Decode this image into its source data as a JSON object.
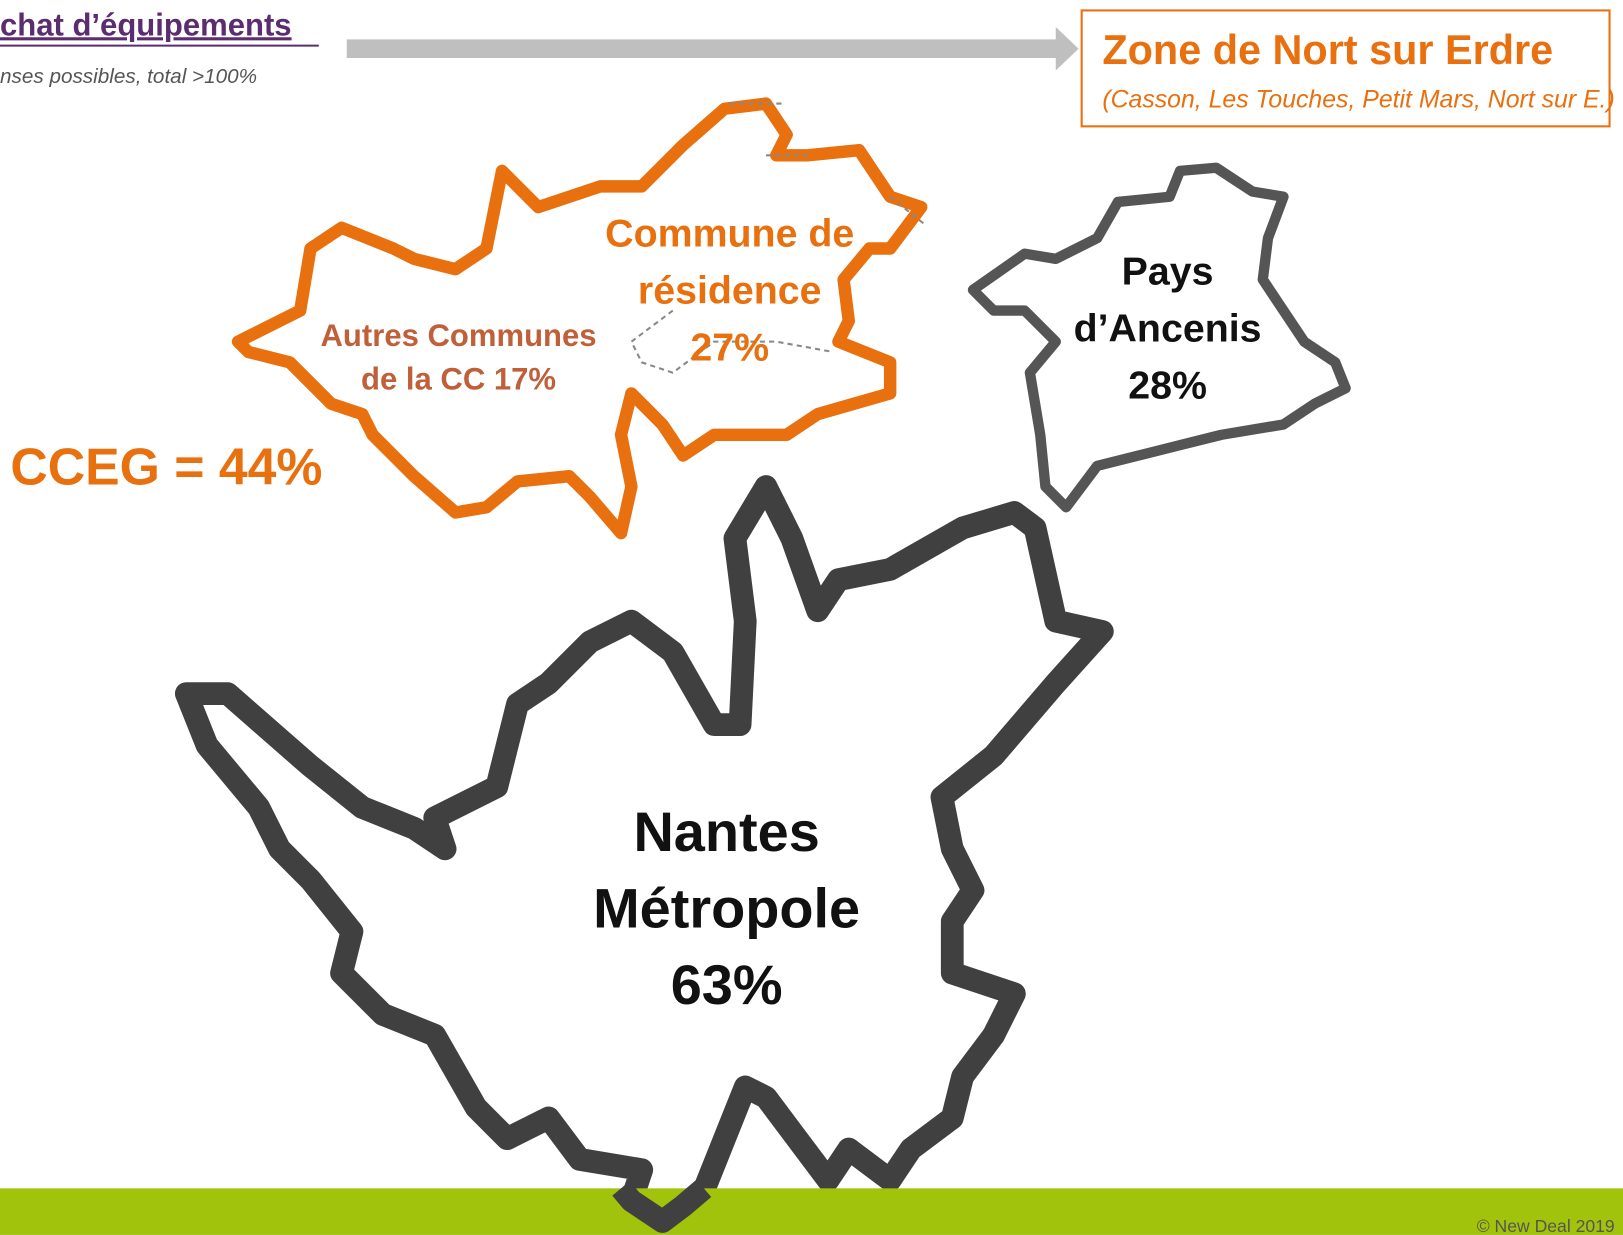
{
  "header": {
    "title": "chat d’équipements",
    "subtitle": "nses possibles, total >100%"
  },
  "zone": {
    "title": "Zone de Nort sur Erdre",
    "subtitle": "(Casson, Les Touches, Petit Mars, Nort sur E.)"
  },
  "regions": [
    {
      "label": [
        "Commune de",
        "résidence",
        "27%"
      ]
    },
    {
      "label": [
        "Autres Communes",
        "de la CC 17%"
      ]
    },
    {
      "label": [
        "Pays",
        "d’Ancenis",
        "28%"
      ]
    },
    {
      "label": [
        "Nantes",
        "Métropole",
        "63%"
      ]
    }
  ],
  "total": "CCEG = 44%",
  "footer": "© New Deal 2019"
}
